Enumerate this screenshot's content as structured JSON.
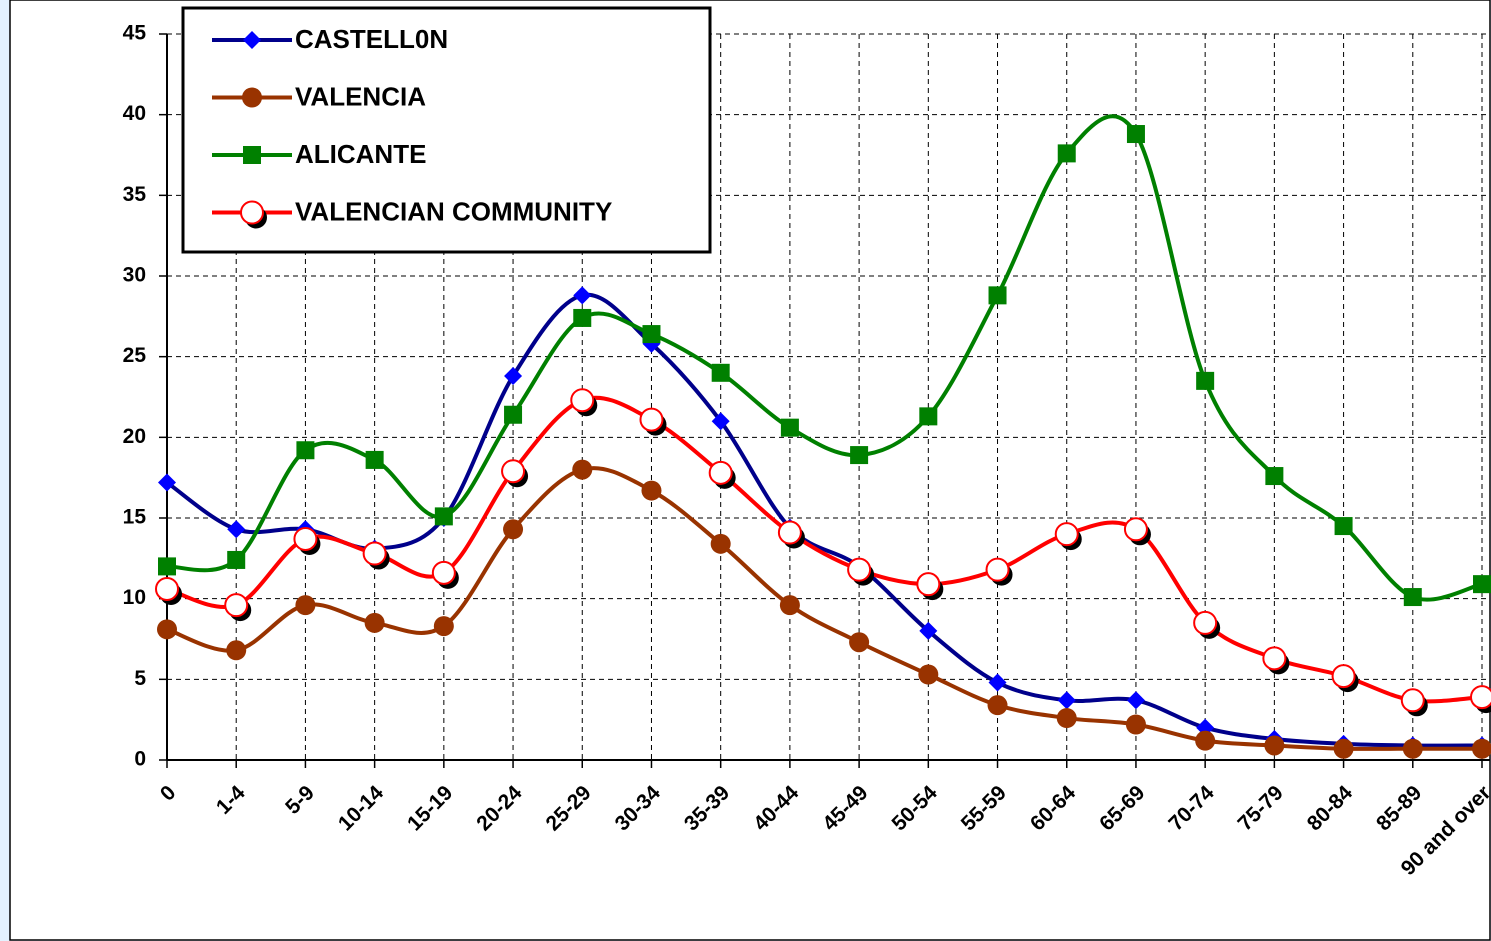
{
  "chart_data": {
    "type": "line",
    "categories": [
      "0",
      "1-4",
      "5-9",
      "10-14",
      "15-19",
      "20-24",
      "25-29",
      "30-34",
      "35-39",
      "40-44",
      "45-49",
      "50-54",
      "55-59",
      "60-64",
      "65-69",
      "70-74",
      "75-79",
      "80-84",
      "85-89",
      "90 and over"
    ],
    "series": [
      {
        "name": "CASTELL0N",
        "color": "#00008b",
        "marker": "diamond",
        "marker_color": "#0000ff",
        "values": [
          17.2,
          14.3,
          14.3,
          13.1,
          15.0,
          23.8,
          28.8,
          25.8,
          21.0,
          14.4,
          12.0,
          8.0,
          4.8,
          3.7,
          3.7,
          2.0,
          1.3,
          1.0,
          0.9,
          0.9
        ]
      },
      {
        "name": "VALENCIA",
        "color": "#993300",
        "marker": "circle",
        "marker_color": "#993300",
        "values": [
          8.1,
          6.8,
          9.6,
          8.5,
          8.3,
          14.3,
          18.0,
          16.7,
          13.4,
          9.6,
          7.3,
          5.3,
          3.4,
          2.6,
          2.2,
          1.2,
          0.9,
          0.7,
          0.7,
          0.7
        ]
      },
      {
        "name": "ALICANTE",
        "color": "#008000",
        "marker": "square",
        "marker_color": "#008000",
        "values": [
          12.0,
          12.4,
          19.2,
          18.6,
          15.1,
          21.4,
          27.4,
          26.4,
          24.0,
          20.6,
          18.9,
          21.3,
          28.8,
          37.6,
          38.8,
          23.5,
          17.6,
          14.5,
          10.1,
          10.9
        ]
      },
      {
        "name": "VALENCIAN COMMUNITY",
        "color": "#ff0000",
        "marker": "open-circle",
        "marker_color": "#ffffff",
        "values": [
          10.6,
          9.6,
          13.7,
          12.8,
          11.6,
          17.9,
          22.3,
          21.1,
          17.8,
          14.1,
          11.8,
          10.9,
          11.8,
          14.0,
          14.3,
          8.5,
          6.3,
          5.2,
          3.7,
          3.9
        ]
      }
    ],
    "ylim": [
      0,
      45
    ],
    "yticks": [
      0,
      5,
      10,
      15,
      20,
      25,
      30,
      35,
      40,
      45
    ],
    "grid": true,
    "legend": "top-left",
    "smooth": true
  }
}
